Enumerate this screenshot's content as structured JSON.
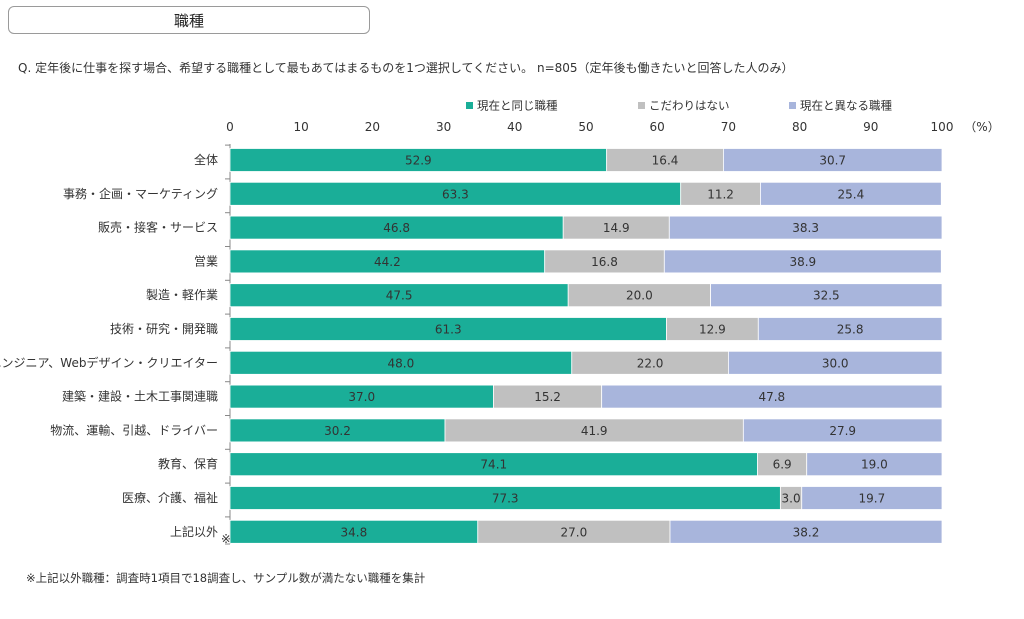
{
  "page_title": "職種",
  "question": "Q.  定年後に仕事を探す場合、希望する職種として最もあてはまるものを1つ選択してください。  n=805（定年後も働きたいと回答した人のみ）",
  "footnote": "※上記以外職種：調査時1項目で18調査し、サンプル数が満たない職種を集計",
  "chart_data": {
    "type": "bar",
    "orientation": "horizontal",
    "stacked": true,
    "unit_label": "（%）",
    "xlim": [
      0,
      100
    ],
    "x_ticks": [
      0,
      10,
      20,
      30,
      40,
      50,
      60,
      70,
      80,
      90,
      100
    ],
    "legend_position": "top-right",
    "grid": false,
    "categories": [
      "全体",
      "事務・企画・マーケティング",
      "販売・接客・サービス",
      "営業",
      "製造・軽作業",
      "技術・研究・開発職",
      "IT・エンジニア、Webデザイン・クリエイター",
      "建築・建設・土木工事関連職",
      "物流、運輸、引越、ドライバー",
      "教育、保育",
      "医療、介護、福祉",
      "上記以外"
    ],
    "category_note_index": 11,
    "category_note": "※",
    "series": [
      {
        "name": "現在と同じ職種",
        "color": "#1aae98",
        "values": [
          52.9,
          63.3,
          46.8,
          44.2,
          47.5,
          61.3,
          48.0,
          37.0,
          30.2,
          74.1,
          77.3,
          34.8
        ],
        "labels": [
          "52.9",
          "63.3",
          "46.8",
          "44.2",
          "47.5",
          "61.3",
          "48.0",
          "37.0",
          "30.2",
          "74.1",
          "77.3",
          "34.8"
        ]
      },
      {
        "name": "こだわりはない",
        "color": "#c0c0c0",
        "values": [
          16.4,
          11.2,
          14.9,
          16.8,
          20.0,
          12.9,
          22.0,
          15.2,
          41.9,
          6.9,
          3.0,
          27.0
        ],
        "labels": [
          "16.4",
          "11.2",
          "14.9",
          "16.8",
          "20.0",
          "12.9",
          "22.0",
          "15.2",
          "41.9",
          "6.9",
          "3.0",
          "27.0"
        ]
      },
      {
        "name": "現在と異なる職種",
        "color": "#a8b5dc",
        "values": [
          30.7,
          25.4,
          38.3,
          38.9,
          32.5,
          25.8,
          30.0,
          47.8,
          27.9,
          19.0,
          19.7,
          38.2
        ],
        "labels": [
          "30.7",
          "25.4",
          "38.3",
          "38.9",
          "32.5",
          "25.8",
          "30.0",
          "47.8",
          "27.9",
          "19.0",
          "19.7",
          "38.2"
        ]
      }
    ]
  }
}
